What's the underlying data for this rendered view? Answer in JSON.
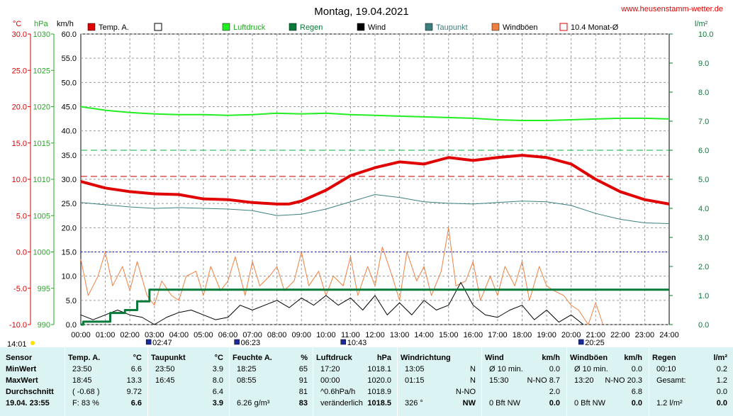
{
  "title": "Montag, 19.04.2021",
  "site": "www.heusenstamm-wetter.de",
  "units": {
    "temp": "°C",
    "pressure": "hPa",
    "wind": "km/h",
    "rain": "l/m²"
  },
  "legend": [
    {
      "label": "Temp. A.",
      "color": "#e00000",
      "kind": "fill"
    },
    {
      "label": "",
      "color": "#ffffff",
      "kind": "empty"
    },
    {
      "label": "Luftdruck",
      "color": "#22ee22",
      "kind": "fill"
    },
    {
      "label": "Regen",
      "color": "#0a7a3a",
      "kind": "fill"
    },
    {
      "label": "Wind",
      "color": "#000000",
      "kind": "fill"
    },
    {
      "label": "Taupunkt",
      "color": "#3b7f7f",
      "kind": "fill"
    },
    {
      "label": "Windböen",
      "color": "#f08040",
      "kind": "fill"
    },
    {
      "label": "10.4 Monat-Ø",
      "color": "#e00000",
      "kind": "outline"
    }
  ],
  "markers": {
    "start": "14:01",
    "items": [
      {
        "label": "02:47",
        "hour": 2.78
      },
      {
        "label": "06:23",
        "hour": 6.38
      },
      {
        "label": "10:43",
        "hour": 10.72
      },
      {
        "label": "20:25",
        "hour": 20.42
      }
    ]
  },
  "chart_data": {
    "type": "line",
    "x_label_ticks": [
      "00:00",
      "01:00",
      "02:00",
      "03:00",
      "04:00",
      "05:00",
      "06:00",
      "07:00",
      "08:00",
      "09:00",
      "10:00",
      "11:00",
      "12:00",
      "13:00",
      "14:00",
      "15:00",
      "16:00",
      "17:00",
      "18:00",
      "19:00",
      "20:00",
      "21:00",
      "22:00",
      "23:00",
      "24:00"
    ],
    "xlim": [
      0,
      24
    ],
    "axes": {
      "temp": {
        "ticks": [
          "30.0",
          "25.0",
          "20.0",
          "15.0",
          "10.0",
          "5.0",
          "0.0",
          "-5.0",
          "-10.0"
        ],
        "lim": [
          -10,
          30
        ],
        "color": "#e00000"
      },
      "pressure": {
        "ticks": [
          "1030",
          "1025",
          "1020",
          "1015",
          "1010",
          "1005",
          "1000",
          "995",
          "990"
        ],
        "lim": [
          990,
          1030
        ],
        "color": "#22aa22"
      },
      "wind": {
        "ticks": [
          "60.0",
          "55.0",
          "50.0",
          "45.0",
          "40.0",
          "35.0",
          "30.0",
          "25.0",
          "20.0",
          "15.0",
          "10.0",
          "5.0",
          "0.0"
        ],
        "lim": [
          0,
          60
        ]
      },
      "rain": {
        "ticks": [
          "10.0",
          "9.0",
          "8.0",
          "7.0",
          "6.0",
          "5.0",
          "4.0",
          "3.0",
          "2.0",
          "1.0",
          "0.0"
        ],
        "lim": [
          0,
          10
        ],
        "color": "#0a7a3a"
      }
    },
    "reference_lines": {
      "temp_month_avg": 10.4,
      "pressure_ref": 1000,
      "rain_ref": 6.0
    },
    "series": [
      {
        "name": "Temp. A.",
        "axis": "temp",
        "color": "#e00000",
        "x": [
          0,
          1,
          2,
          3,
          4,
          5,
          6,
          7,
          8,
          8.5,
          9,
          10,
          11,
          12,
          13,
          14,
          15,
          16,
          17,
          18,
          19,
          20,
          21,
          22,
          23,
          24
        ],
        "y": [
          9.7,
          8.8,
          8.3,
          8.0,
          7.9,
          7.3,
          7.2,
          6.8,
          6.6,
          6.6,
          7.0,
          8.5,
          10.5,
          11.6,
          12.4,
          12.1,
          13.0,
          12.6,
          13.0,
          13.3,
          13.0,
          12.1,
          10.0,
          8.3,
          7.2,
          6.6
        ]
      },
      {
        "name": "Luftdruck",
        "axis": "pressure",
        "color": "#22ee22",
        "x": [
          0,
          1,
          2,
          3,
          4,
          5,
          6,
          7,
          8,
          9,
          10,
          11,
          12,
          13,
          14,
          15,
          16,
          17,
          18,
          19,
          20,
          21,
          22,
          23,
          24
        ],
        "y": [
          1020.0,
          1019.5,
          1019.2,
          1019.0,
          1018.9,
          1018.9,
          1018.8,
          1018.9,
          1019.1,
          1019.0,
          1019.1,
          1018.9,
          1018.8,
          1018.7,
          1018.6,
          1018.5,
          1018.4,
          1018.2,
          1018.1,
          1018.1,
          1018.2,
          1018.3,
          1018.4,
          1018.4,
          1018.3
        ]
      },
      {
        "name": "Taupunkt",
        "axis": "temp",
        "color": "#3b7f7f",
        "x": [
          0,
          1,
          2,
          3,
          4,
          5,
          6,
          7,
          8,
          9,
          10,
          11,
          12,
          13,
          14,
          15,
          16,
          17,
          18,
          19,
          20,
          21,
          22,
          23,
          24
        ],
        "y": [
          6.8,
          6.5,
          6.2,
          6.0,
          6.1,
          6.0,
          5.9,
          5.7,
          5.0,
          5.2,
          5.9,
          6.9,
          7.9,
          7.5,
          6.9,
          6.7,
          6.6,
          6.8,
          7.0,
          6.9,
          6.4,
          5.3,
          4.5,
          4.0,
          3.9
        ]
      },
      {
        "name": "Regen",
        "axis": "rain",
        "color": "#0a7a3a",
        "step": true,
        "x": [
          0,
          0.1,
          1.2,
          1.8,
          2.3,
          2.8,
          24
        ],
        "y": [
          0.0,
          0.1,
          0.4,
          0.5,
          0.8,
          1.2,
          1.2
        ]
      },
      {
        "name": "Wind",
        "axis": "wind",
        "color": "#000000",
        "x": [
          0,
          0.5,
          1,
          1.5,
          2,
          2.5,
          3,
          3.5,
          4,
          4.5,
          5,
          5.5,
          6,
          6.5,
          7,
          7.5,
          8,
          8.5,
          9,
          9.5,
          10,
          10.5,
          11,
          11.5,
          12,
          12.5,
          13,
          13.5,
          14,
          14.5,
          15,
          15.5,
          16,
          16.5,
          17,
          17.5,
          18,
          18.5,
          19,
          19.5,
          20,
          20.5
        ],
        "y": [
          2.0,
          1.0,
          2.0,
          3.0,
          2.0,
          1.5,
          0.0,
          1.5,
          2.5,
          3.0,
          2.0,
          1.0,
          1.5,
          4.0,
          3.0,
          4.0,
          5.0,
          3.5,
          5.5,
          4.0,
          6.0,
          4.0,
          5.5,
          3.0,
          6.0,
          2.0,
          4.5,
          2.0,
          5.0,
          3.0,
          4.0,
          8.7,
          4.0,
          2.0,
          1.5,
          3.0,
          4.0,
          1.0,
          3.0,
          0.5,
          2.0,
          0.0
        ]
      },
      {
        "name": "Windböen",
        "axis": "wind",
        "color": "#f08040",
        "x": [
          0,
          0.3,
          0.7,
          1,
          1.3,
          1.7,
          2,
          2.3,
          2.7,
          3,
          3.3,
          3.7,
          4,
          4.3,
          4.7,
          5,
          5.3,
          5.7,
          6,
          6.3,
          6.7,
          7,
          7.3,
          7.7,
          8,
          8.3,
          8.7,
          9,
          9.3,
          9.7,
          10,
          10.3,
          10.7,
          11,
          11.3,
          11.7,
          12,
          12.3,
          12.7,
          13,
          13.3,
          13.7,
          14,
          14.3,
          14.7,
          15,
          15.3,
          15.7,
          16,
          16.3,
          16.7,
          17,
          17.3,
          17.7,
          18,
          18.3,
          18.7,
          19,
          19.3,
          19.7,
          20,
          20.3,
          20.7,
          21,
          21.3
        ],
        "y": [
          13.5,
          6.0,
          10.0,
          15.0,
          8.0,
          12.0,
          7.0,
          13.0,
          6.0,
          4.0,
          9.0,
          6.0,
          5.0,
          10.0,
          11.0,
          6.0,
          12.0,
          7.0,
          9.0,
          14.0,
          6.0,
          13.0,
          8.0,
          10.0,
          12.0,
          7.0,
          9.0,
          15.0,
          8.0,
          11.0,
          6.0,
          10.0,
          8.0,
          14.0,
          6.0,
          12.0,
          8.0,
          16.0,
          10.0,
          5.0,
          15.0,
          9.0,
          12.0,
          6.0,
          11.0,
          20.0,
          8.0,
          9.0,
          13.0,
          5.0,
          10.0,
          6.0,
          12.0,
          8.0,
          13.0,
          5.0,
          12.0,
          8.0,
          7.0,
          6.0,
          4.0,
          3.0,
          0.0,
          4.5,
          0.0
        ]
      }
    ]
  },
  "table": {
    "columns": [
      {
        "header": [
          "Sensor"
        ],
        "rows": [
          [
            "MinWert"
          ],
          [
            "MaxWert"
          ],
          [
            "Durchschnitt"
          ],
          [
            "19.04.  23:55"
          ]
        ]
      },
      {
        "header": [
          "Temp. A.",
          "°C"
        ],
        "rows": [
          [
            "23:50",
            "6.6"
          ],
          [
            "18:45",
            "13.3"
          ],
          [
            "( -0.68 )",
            "9.72"
          ],
          [
            "F: 83 %",
            "6.6"
          ]
        ]
      },
      {
        "header": [
          "Taupunkt",
          "°C"
        ],
        "rows": [
          [
            "23:50",
            "3.9"
          ],
          [
            "16:45",
            "8.0"
          ],
          [
            "",
            "6.4"
          ],
          [
            "",
            "3.9"
          ]
        ]
      },
      {
        "header": [
          "Feuchte A.",
          "%"
        ],
        "rows": [
          [
            "18:25",
            "65"
          ],
          [
            "08:55",
            "91"
          ],
          [
            "",
            "81"
          ],
          [
            "6.26 g/m³",
            "83"
          ]
        ]
      },
      {
        "header": [
          "Luftdruck",
          "hPa"
        ],
        "rows": [
          [
            "17:20",
            "1018.1"
          ],
          [
            "00:00",
            "1020.0"
          ],
          [
            "^0.6hPa/h",
            "1018.9"
          ],
          [
            "veränderlich",
            "1018.5"
          ]
        ]
      },
      {
        "header": [
          "Windrichtung",
          ""
        ],
        "rows": [
          [
            "13:05",
            "N"
          ],
          [
            "01:15",
            "N"
          ],
          [
            "",
            "N-NO"
          ],
          [
            "326 °",
            "NW"
          ]
        ]
      },
      {
        "header": [
          "Wind",
          "km/h"
        ],
        "rows": [
          [
            "Ø 10 min.",
            "0.0"
          ],
          [
            "15:30",
            "N-NO 8.7"
          ],
          [
            "",
            "2.0"
          ],
          [
            "0 Bft NW",
            "0.0"
          ]
        ]
      },
      {
        "header": [
          "Windböen",
          "km/h"
        ],
        "rows": [
          [
            "Ø 10 min.",
            "0.0"
          ],
          [
            "13:20",
            "N-NO 20.3"
          ],
          [
            "",
            "6.8"
          ],
          [
            "0 Bft NW",
            "0.0"
          ]
        ]
      },
      {
        "header": [
          "Regen",
          "l/m²"
        ],
        "rows": [
          [
            "00:10",
            "0.2"
          ],
          [
            "Gesamt:",
            "1.2"
          ],
          [
            "",
            "0.0"
          ],
          [
            "1.2 l/m²",
            "0.0"
          ]
        ]
      }
    ]
  }
}
